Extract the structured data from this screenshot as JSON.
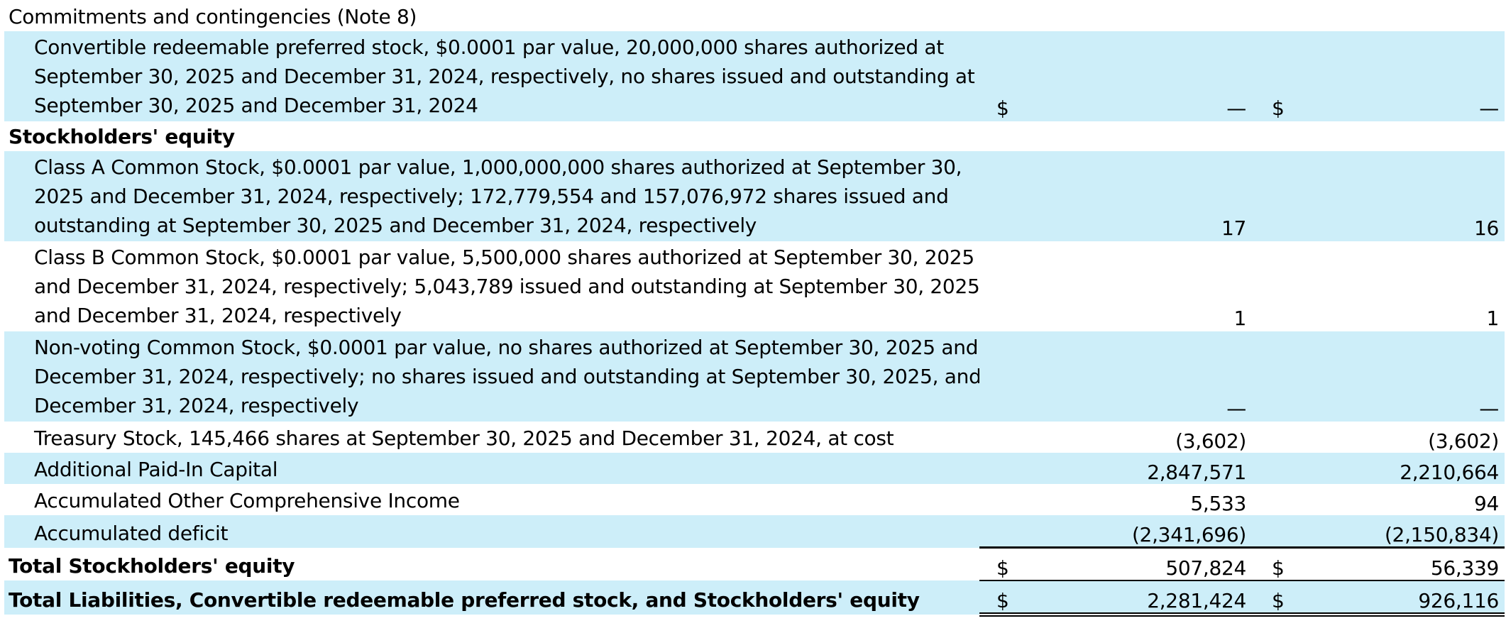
{
  "commitments_label": "Commitments and contingencies (Note 8)",
  "preferred": {
    "lines": [
      "Convertible redeemable preferred stock, $0.0001 par value, 20,000,000 shares authorized at",
      "September 30, 2025 and December 31, 2024, respectively, no shares issued and outstanding at",
      "September 30, 2025 and December 31, 2024"
    ],
    "currency_1": "$",
    "value_1": "—",
    "currency_2": "$",
    "value_2": "—"
  },
  "equity_heading": "Stockholders' equity",
  "class_a": {
    "lines": [
      "Class A Common Stock, $0.0001 par value, 1,000,000,000 shares authorized at September 30,",
      "2025 and December 31, 2024, respectively; 172,779,554 and 157,076,972 shares issued and",
      "outstanding at September 30, 2025 and December 31, 2024, respectively"
    ],
    "value_1": "17",
    "value_2": "16"
  },
  "class_b": {
    "lines": [
      "Class B Common Stock, $0.0001 par value, 5,500,000 shares authorized at September 30, 2025",
      "and December 31, 2024, respectively; 5,043,789 issued and outstanding at September 30, 2025",
      "and December 31, 2024, respectively"
    ],
    "value_1": "1",
    "value_2": "1"
  },
  "non_voting": {
    "lines": [
      "Non-voting Common Stock, $0.0001 par value, no shares authorized at September 30, 2025 and",
      "December 31, 2024, respectively; no shares issued and outstanding at September 30, 2025, and",
      "December 31, 2024, respectively"
    ],
    "value_1": "—",
    "value_2": "—"
  },
  "treasury": {
    "label": "Treasury Stock, 145,466 shares at September 30, 2025 and December 31, 2024, at cost",
    "value_1": "(3,602)",
    "value_2": "(3,602)"
  },
  "apic": {
    "label": "Additional Paid-In Capital",
    "value_1": "2,847,571",
    "value_2": "2,210,664"
  },
  "aoci": {
    "label": "Accumulated Other Comprehensive Income",
    "value_1": "5,533",
    "value_2": "94"
  },
  "deficit": {
    "label": "Accumulated deficit",
    "value_1": "(2,341,696)",
    "value_2": "(2,150,834)"
  },
  "total_equity": {
    "label": "Total Stockholders' equity",
    "currency_1": "$",
    "value_1": "507,824",
    "currency_2": "$",
    "value_2": "56,339"
  },
  "total_liabilities": {
    "label": "Total Liabilities, Convertible redeemable preferred stock, and Stockholders' equity",
    "currency_1": "$",
    "value_1": "2,281,424",
    "currency_2": "$",
    "value_2": "926,116"
  }
}
